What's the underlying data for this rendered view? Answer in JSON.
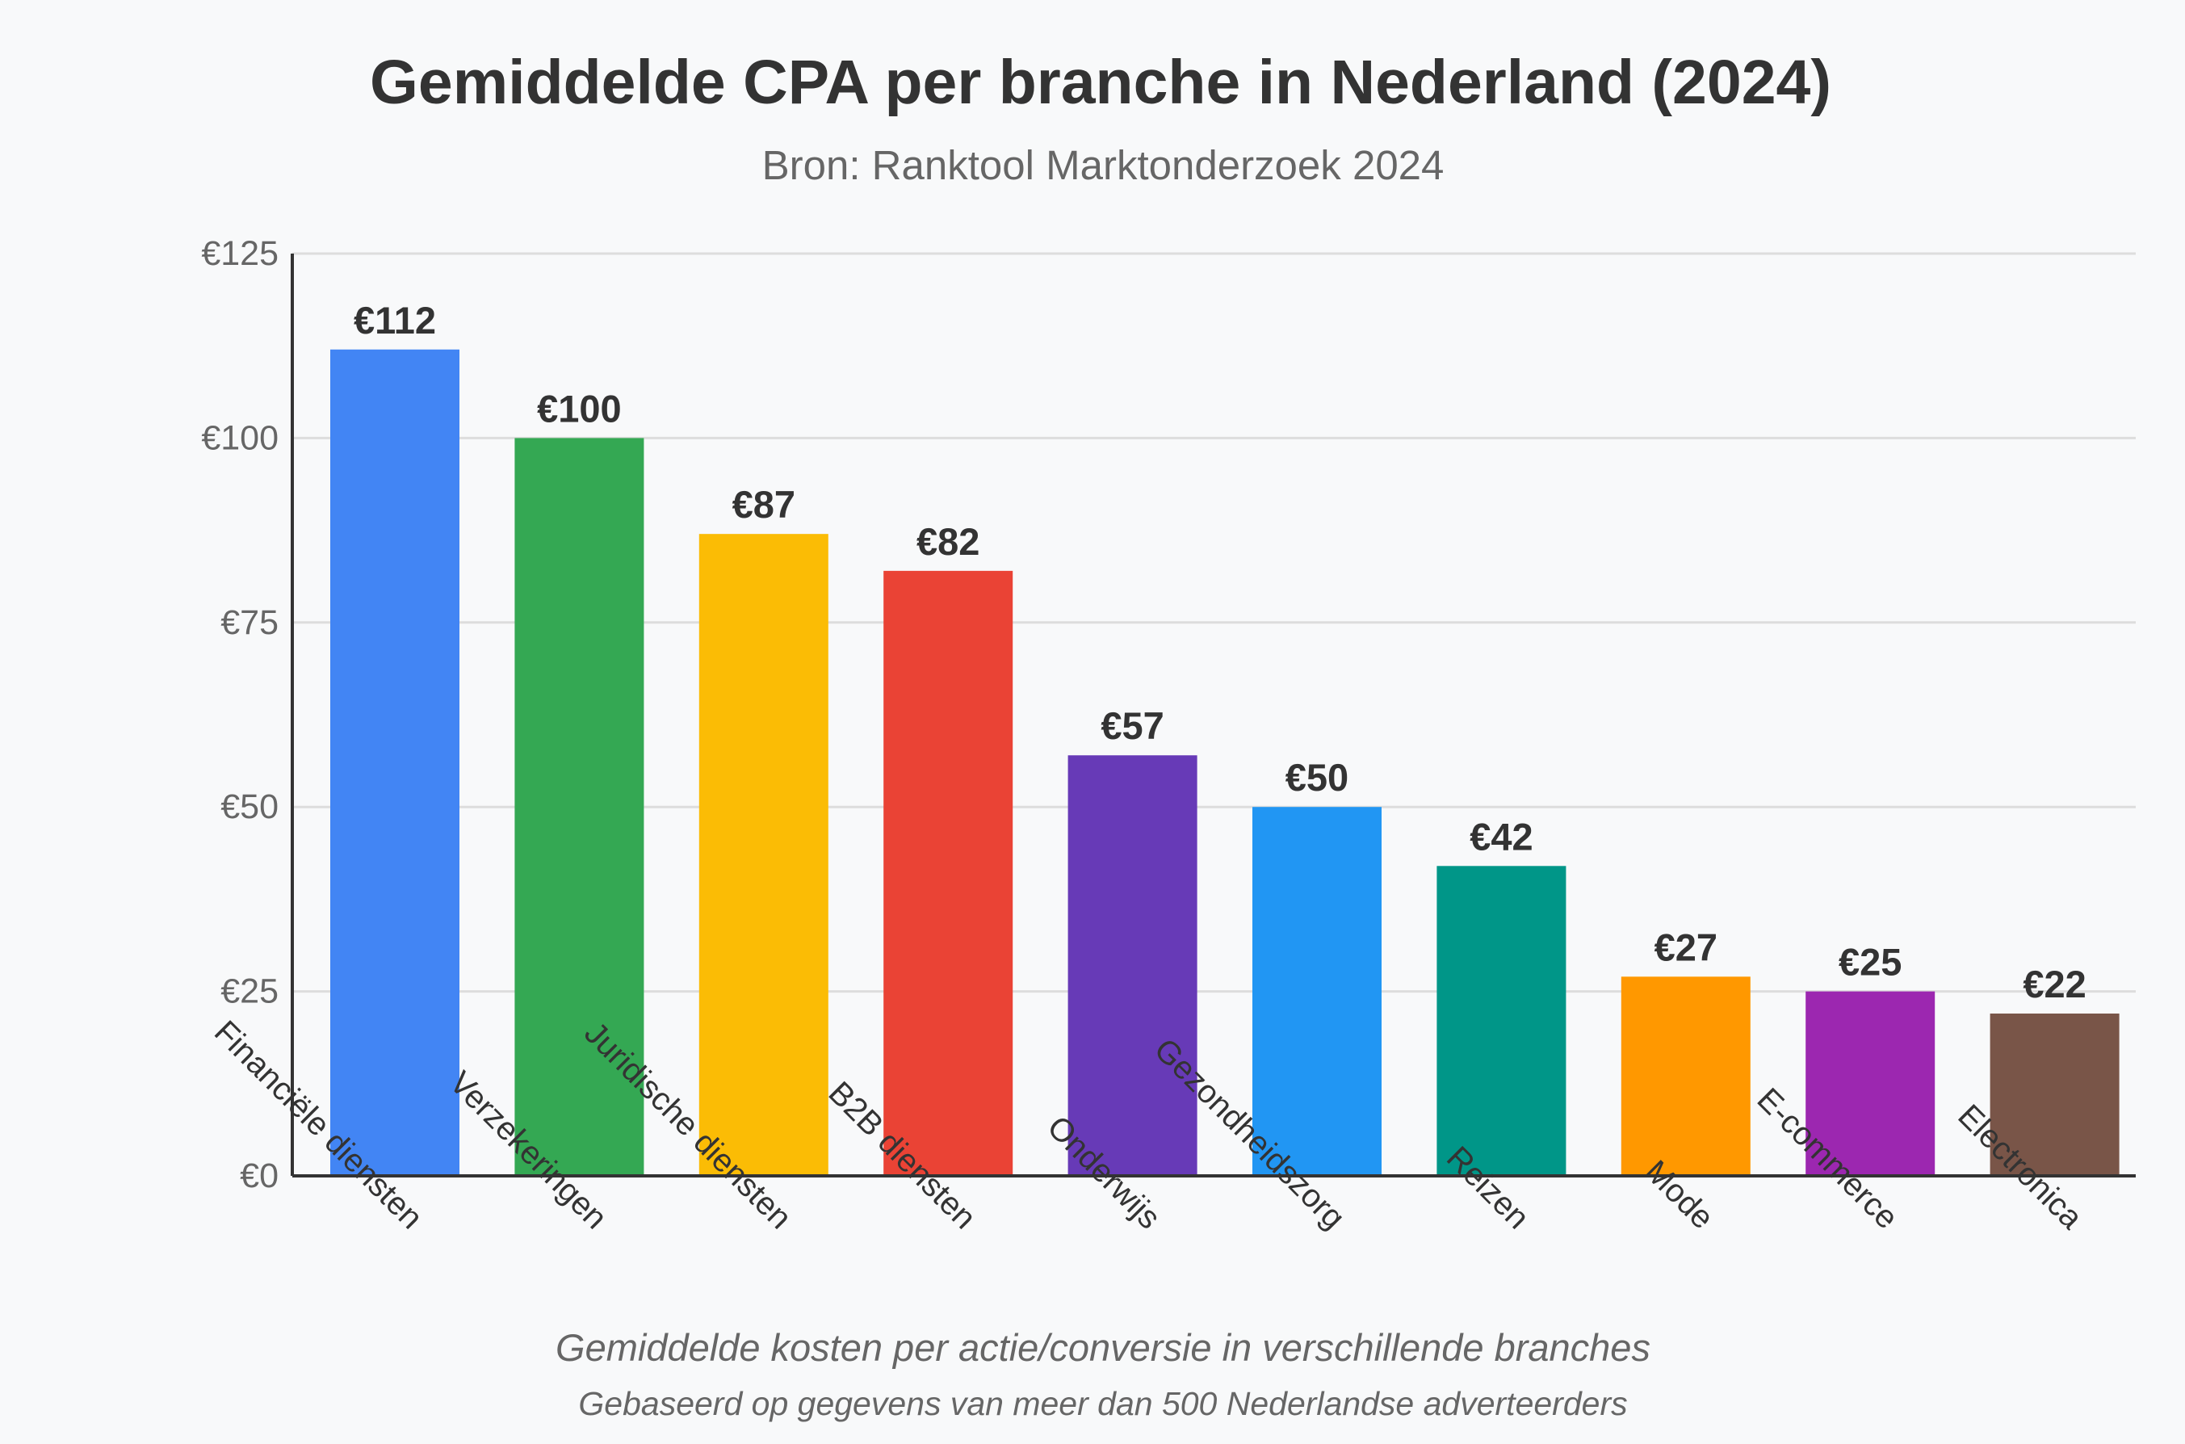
{
  "chart_data": {
    "type": "bar",
    "title": "Gemiddelde CPA per branche in Nederland (2024)",
    "subtitle": "Bron: Ranktool Marktonderzoek 2024",
    "xlabel": "",
    "ylabel": "",
    "ylim": [
      0,
      125
    ],
    "yticks": [
      0,
      25,
      50,
      75,
      100,
      125
    ],
    "ytick_labels": [
      "€0",
      "€25",
      "€50",
      "€75",
      "€100",
      "€125"
    ],
    "grid": true,
    "categories": [
      "Financiële diensten",
      "Verzekeringen",
      "Juridische diensten",
      "B2B diensten",
      "Onderwijs",
      "Gezondheidszorg",
      "Reizen",
      "Mode",
      "E-commerce",
      "Electronica"
    ],
    "values": [
      112,
      100,
      87,
      82,
      57,
      50,
      42,
      27,
      25,
      22
    ],
    "value_labels": [
      "€112",
      "€100",
      "€87",
      "€82",
      "€57",
      "€50",
      "€42",
      "€27",
      "€25",
      "€22"
    ],
    "colors": [
      "#4285f4",
      "#34a853",
      "#fbbc05",
      "#ea4335",
      "#673ab7",
      "#2196f3",
      "#009688",
      "#ff9800",
      "#9c27b0",
      "#795548"
    ]
  },
  "footnotes": {
    "line1": "Gemiddelde kosten per actie/conversie in verschillende branches",
    "line2": "Gebaseerd op gegevens van meer dan 500 Nederlandse adverteerders"
  },
  "colors": {
    "background": "#f8f9fa",
    "text_dark": "#333333",
    "text_muted": "#666666",
    "grid": "#dddddd",
    "axis": "#333333"
  }
}
